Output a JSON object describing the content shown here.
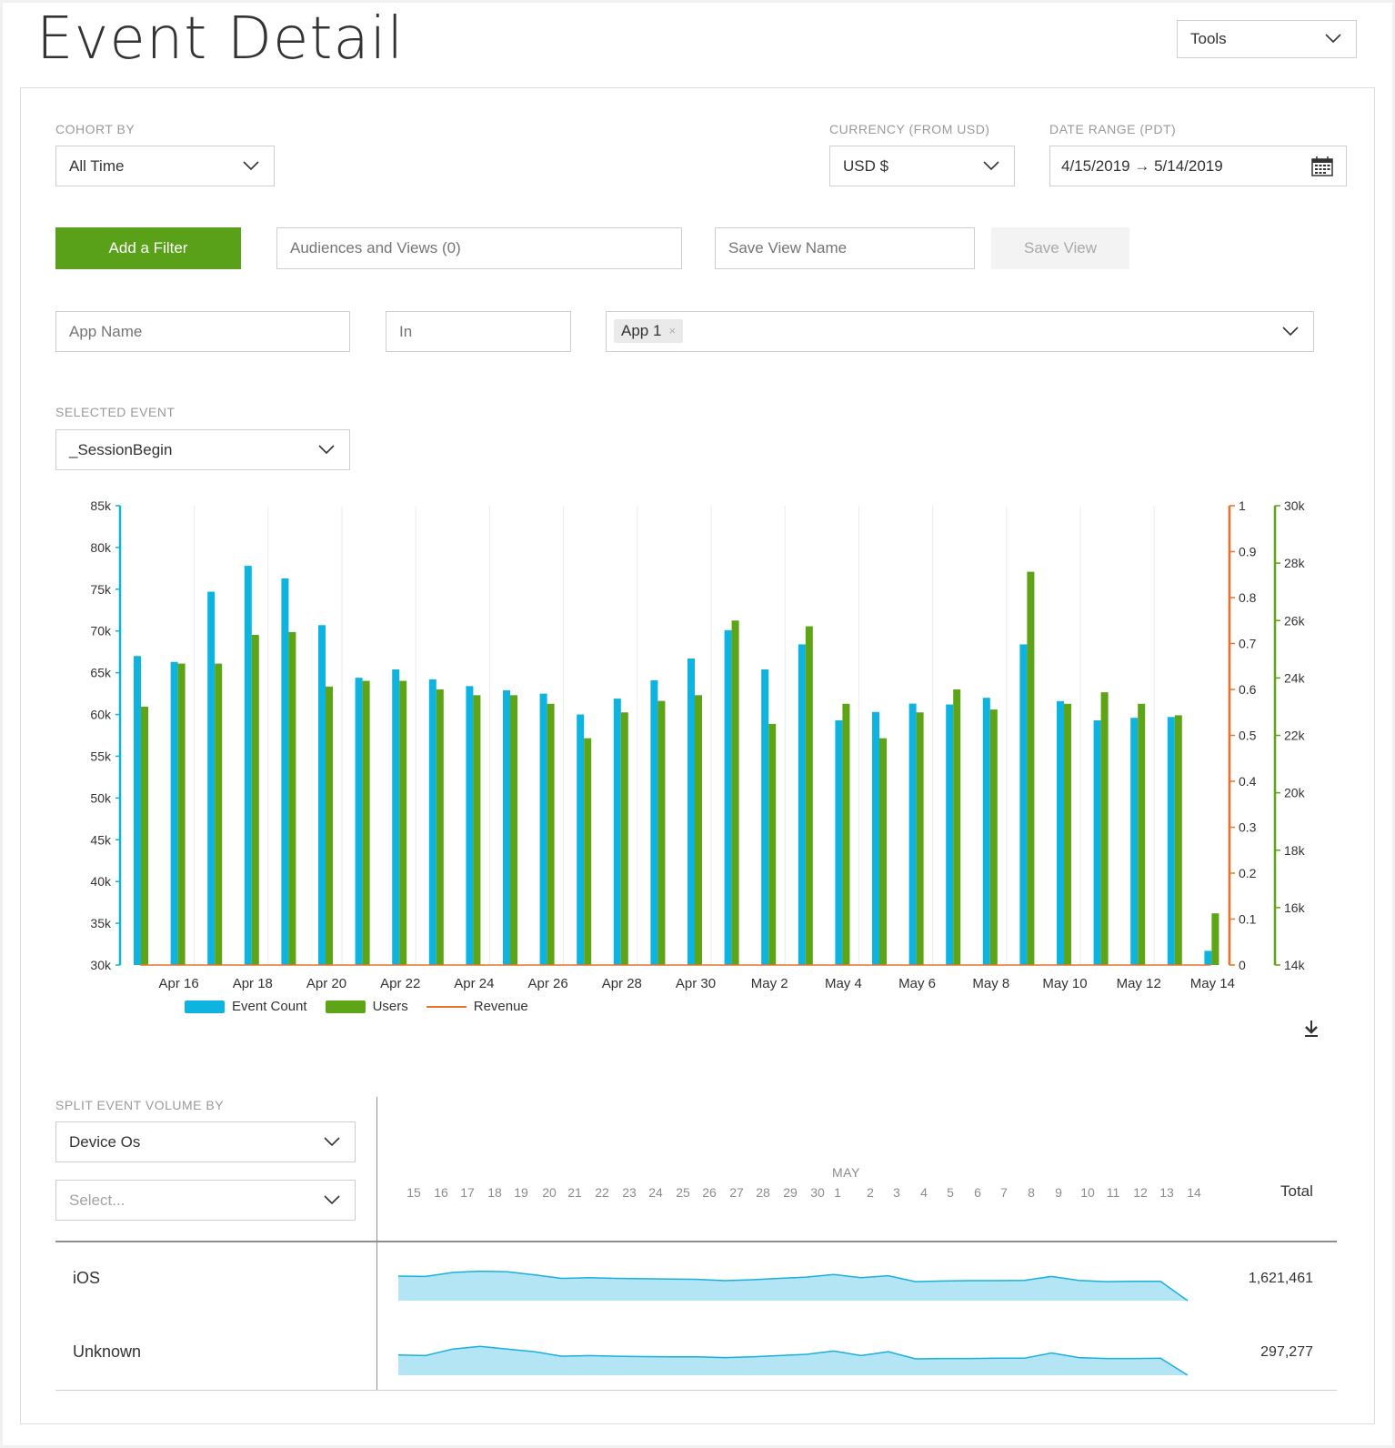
{
  "page": {
    "title": "Event Detail"
  },
  "tools": {
    "label": "Tools"
  },
  "filters": {
    "cohort_label": "COHORT BY",
    "cohort_value": "All Time",
    "currency_label": "CURRENCY (FROM USD)",
    "currency_value": "USD $",
    "date_label": "DATE RANGE (PDT)",
    "date_value": "4/15/2019 → 5/14/2019",
    "add_filter": "Add a Filter",
    "audiences_placeholder": "Audiences and Views (0)",
    "save_view_placeholder": "Save View Name",
    "save_view": "Save View",
    "app_name_placeholder": "App Name",
    "in_placeholder": "In",
    "app_chip": "App 1",
    "app_chip_remove": "×"
  },
  "event": {
    "label": "SELECTED EVENT",
    "value": "_SessionBegin"
  },
  "colors": {
    "event_count": "#0eb3e0",
    "users": "#5ea417",
    "revenue": "#e8732a",
    "area_fill": "#b3e5f5",
    "area_line": "#18b1db"
  },
  "chart_data": {
    "type": "bar",
    "x_tick_labels": [
      "Apr 16",
      "Apr 18",
      "Apr 20",
      "Apr 22",
      "Apr 24",
      "Apr 26",
      "Apr 28",
      "Apr 30",
      "May 2",
      "May 4",
      "May 6",
      "May 8",
      "May 10",
      "May 12",
      "May 14"
    ],
    "categories": [
      "Apr 15",
      "Apr 16",
      "Apr 17",
      "Apr 18",
      "Apr 19",
      "Apr 20",
      "Apr 21",
      "Apr 22",
      "Apr 23",
      "Apr 24",
      "Apr 25",
      "Apr 26",
      "Apr 27",
      "Apr 28",
      "Apr 29",
      "Apr 30",
      "May 1",
      "May 2",
      "May 3",
      "May 4",
      "May 5",
      "May 6",
      "May 7",
      "May 8",
      "May 9",
      "May 10",
      "May 11",
      "May 12",
      "May 13",
      "May 14"
    ],
    "series": [
      {
        "name": "Event Count",
        "axis": "left",
        "values": [
          67000,
          66300,
          74700,
          77800,
          76300,
          70700,
          64400,
          65400,
          64200,
          63400,
          62900,
          62500,
          60000,
          61900,
          64100,
          66700,
          70100,
          65400,
          68400,
          59300,
          60300,
          61300,
          61200,
          62000,
          68400,
          61600,
          59300,
          59600,
          59700,
          31700
        ]
      },
      {
        "name": "Users",
        "axis": "right2",
        "values": [
          23000,
          24500,
          24500,
          25500,
          25600,
          23700,
          23900,
          23900,
          23600,
          23400,
          23400,
          23100,
          21900,
          22800,
          23200,
          23400,
          26000,
          22400,
          25800,
          23100,
          21900,
          22800,
          23600,
          22900,
          27700,
          23100,
          23500,
          23100,
          22700,
          15800
        ]
      },
      {
        "name": "Revenue",
        "axis": "right1",
        "values": [
          0,
          0,
          0,
          0,
          0,
          0,
          0,
          0,
          0,
          0,
          0,
          0,
          0,
          0,
          0,
          0,
          0,
          0,
          0,
          0,
          0,
          0,
          0,
          0,
          0,
          0,
          0,
          0,
          0,
          0
        ]
      }
    ],
    "y_left": {
      "min": 30000,
      "max": 85000,
      "ticks": [
        "85k",
        "80k",
        "75k",
        "70k",
        "65k",
        "60k",
        "55k",
        "50k",
        "45k",
        "40k",
        "35k",
        "30k"
      ]
    },
    "y_right1": {
      "min": 0,
      "max": 1,
      "ticks": [
        "1",
        "0.9",
        "0.8",
        "0.7",
        "0.6",
        "0.5",
        "0.4",
        "0.3",
        "0.2",
        "0.1",
        "0"
      ]
    },
    "y_right2": {
      "min": 14000,
      "max": 30000,
      "ticks": [
        "30k",
        "28k",
        "26k",
        "24k",
        "22k",
        "20k",
        "18k",
        "16k",
        "14k"
      ]
    },
    "legend": [
      "Event Count",
      "Users",
      "Revenue"
    ],
    "legend_position": "bottom-left",
    "grid": true
  },
  "split": {
    "label": "SPLIT EVENT VOLUME BY",
    "value": "Device Os",
    "select_placeholder": "Select...",
    "month_label": "MAY",
    "days": [
      "15",
      "16",
      "17",
      "18",
      "19",
      "20",
      "21",
      "22",
      "23",
      "24",
      "25",
      "26",
      "27",
      "28",
      "29",
      "30",
      "1",
      "2",
      "3",
      "4",
      "5",
      "6",
      "7",
      "8",
      "9",
      "10",
      "11",
      "12",
      "13",
      "14"
    ],
    "total_header": "Total",
    "rows": [
      {
        "name": "iOS",
        "total": "1,621,461",
        "trend": [
          0.75,
          0.74,
          0.86,
          0.9,
          0.88,
          0.79,
          0.68,
          0.7,
          0.68,
          0.67,
          0.66,
          0.65,
          0.61,
          0.64,
          0.68,
          0.72,
          0.8,
          0.7,
          0.76,
          0.58,
          0.6,
          0.61,
          0.61,
          0.62,
          0.74,
          0.62,
          0.58,
          0.59,
          0.59,
          0.0
        ]
      },
      {
        "name": "Unknown",
        "total": "297,277",
        "trend": [
          0.62,
          0.6,
          0.8,
          0.88,
          0.8,
          0.72,
          0.58,
          0.6,
          0.58,
          0.57,
          0.56,
          0.56,
          0.54,
          0.56,
          0.6,
          0.64,
          0.74,
          0.6,
          0.72,
          0.5,
          0.51,
          0.51,
          0.52,
          0.52,
          0.68,
          0.54,
          0.51,
          0.51,
          0.52,
          0.0
        ]
      }
    ]
  }
}
